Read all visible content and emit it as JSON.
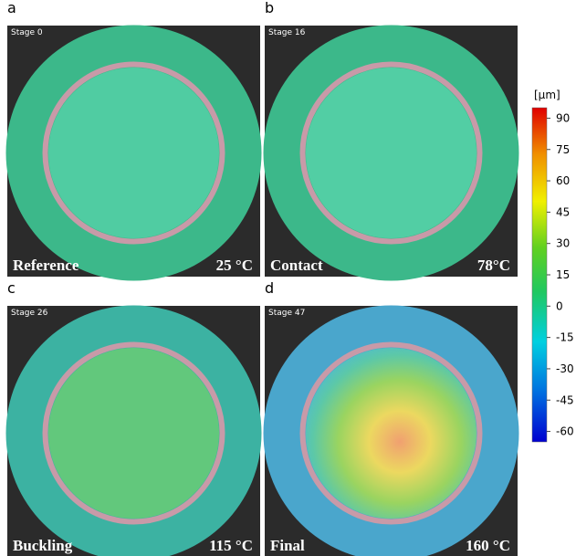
{
  "panels": [
    {
      "letter": "a",
      "stage": "Stage 0",
      "name": "Reference",
      "temperature": "25 °C"
    },
    {
      "letter": "b",
      "stage": "Stage 16",
      "name": "Contact",
      "temperature": "78°C"
    },
    {
      "letter": "c",
      "stage": "Stage 26",
      "name": "Buckling",
      "temperature": "115 °C"
    },
    {
      "letter": "d",
      "stage": "Stage 47",
      "name": "Final",
      "temperature": "160 °C"
    }
  ],
  "colorbar": {
    "unit": "[µm]",
    "lim": [
      -65,
      95
    ],
    "ticks": [
      90,
      75,
      60,
      45,
      30,
      15,
      0,
      -15,
      -30,
      -45,
      -60
    ]
  }
}
